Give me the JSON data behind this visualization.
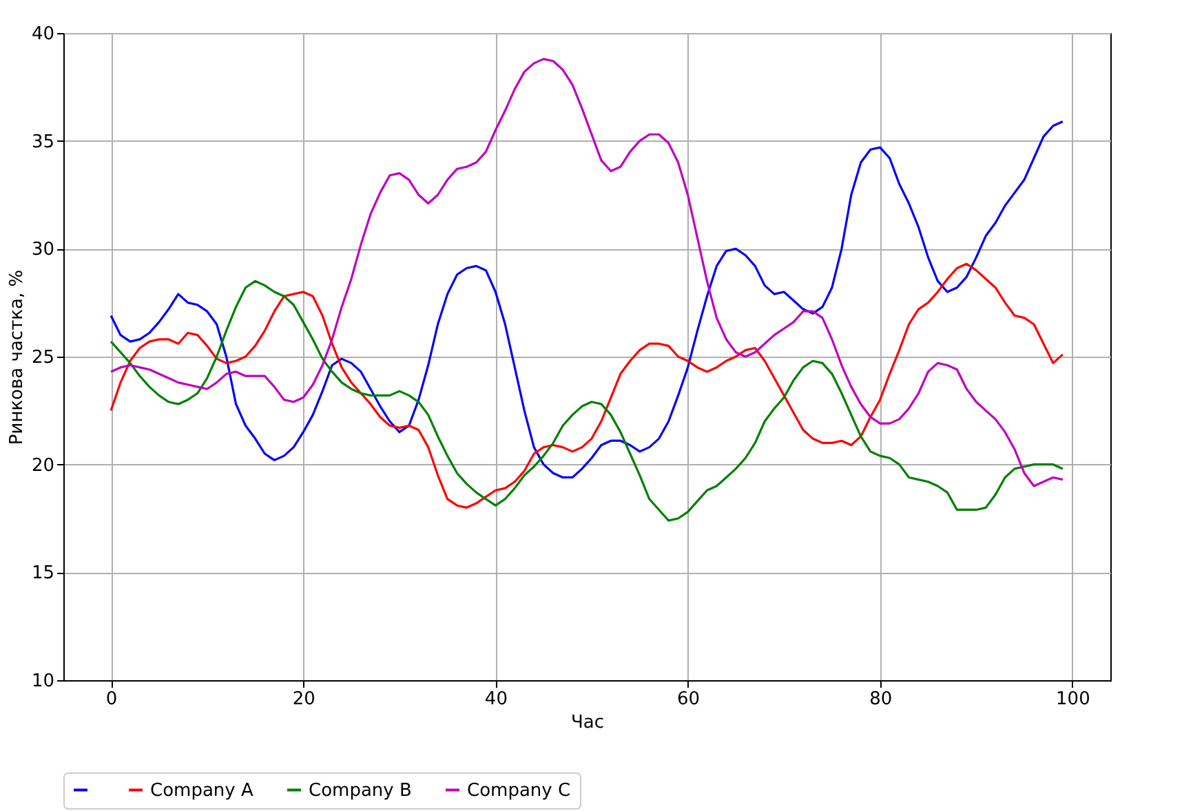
{
  "chart_data": {
    "type": "line",
    "xlabel": "Час",
    "ylabel": "Ринкова частка, %",
    "x": [
      0,
      1,
      2,
      3,
      4,
      5,
      6,
      7,
      8,
      9,
      10,
      11,
      12,
      13,
      14,
      15,
      16,
      17,
      18,
      19,
      20,
      21,
      22,
      23,
      24,
      25,
      26,
      27,
      28,
      29,
      30,
      31,
      32,
      33,
      34,
      35,
      36,
      37,
      38,
      39,
      40,
      41,
      42,
      43,
      44,
      45,
      46,
      47,
      48,
      49,
      50,
      51,
      52,
      53,
      54,
      55,
      56,
      57,
      58,
      59,
      60,
      61,
      62,
      63,
      64,
      65,
      66,
      67,
      68,
      69,
      70,
      71,
      72,
      73,
      74,
      75,
      76,
      77,
      78,
      79,
      80,
      81,
      82,
      83,
      84,
      85,
      86,
      87,
      88,
      89,
      90,
      91,
      92,
      93,
      94,
      95,
      96,
      97,
      98,
      99
    ],
    "series": [
      {
        "color": "#0000ff",
        "values": [
          26.9,
          26.0,
          25.7,
          25.8,
          26.1,
          26.6,
          27.2,
          27.9,
          27.5,
          27.4,
          27.1,
          26.5,
          25.0,
          22.8,
          21.8,
          21.2,
          20.5,
          20.2,
          20.4,
          20.8,
          21.5,
          22.3,
          23.4,
          24.6,
          24.9,
          24.7,
          24.3,
          23.5,
          22.7,
          22.0,
          21.5,
          21.8,
          23.0,
          24.6,
          26.5,
          27.9,
          28.8,
          29.1,
          29.2,
          29.0,
          28.0,
          26.5,
          24.5,
          22.5,
          20.8,
          20.0,
          19.6,
          19.4,
          19.4,
          19.8,
          20.3,
          20.9,
          21.1,
          21.1,
          20.9,
          20.6,
          20.8,
          21.2,
          22.0,
          23.2,
          24.5,
          26.2,
          27.8,
          29.2,
          29.9,
          30.0,
          29.7,
          29.2,
          28.3,
          27.9,
          28.0,
          27.6,
          27.2,
          27.0,
          27.3,
          28.2,
          30.0,
          32.5,
          34.0,
          34.6,
          34.7,
          34.2,
          33.0,
          32.1,
          31.0,
          29.6,
          28.5,
          28.0,
          28.2,
          28.7,
          29.6,
          30.6,
          31.2,
          32.0,
          32.6,
          33.2,
          34.2,
          35.2,
          35.7,
          35.9
        ]
      },
      {
        "name": "Company A",
        "color": "#ff0000",
        "values": [
          22.5,
          23.8,
          24.8,
          25.4,
          25.7,
          25.8,
          25.8,
          25.6,
          26.1,
          26.0,
          25.5,
          24.9,
          24.7,
          24.8,
          25.0,
          25.5,
          26.2,
          27.1,
          27.8,
          27.9,
          28.0,
          27.8,
          26.9,
          25.6,
          24.5,
          23.8,
          23.3,
          22.8,
          22.2,
          21.8,
          21.7,
          21.8,
          21.6,
          20.8,
          19.5,
          18.4,
          18.1,
          18.0,
          18.2,
          18.5,
          18.8,
          18.9,
          19.2,
          19.7,
          20.5,
          20.8,
          20.9,
          20.8,
          20.6,
          20.8,
          21.2,
          22.0,
          23.1,
          24.2,
          24.8,
          25.3,
          25.6,
          25.6,
          25.5,
          25.0,
          24.8,
          24.5,
          24.3,
          24.5,
          24.8,
          25.0,
          25.3,
          25.4,
          24.8,
          24.0,
          23.2,
          22.4,
          21.6,
          21.2,
          21.0,
          21.0,
          21.1,
          20.9,
          21.3,
          22.2,
          23.0,
          24.2,
          25.3,
          26.5,
          27.2,
          27.5,
          28.0,
          28.6,
          29.1,
          29.3,
          29.0,
          28.6,
          28.2,
          27.5,
          26.9,
          26.8,
          26.5,
          25.6,
          24.7,
          25.1
        ]
      },
      {
        "name": "Company B",
        "color": "#008000",
        "values": [
          25.7,
          25.2,
          24.7,
          24.1,
          23.6,
          23.2,
          22.9,
          22.8,
          23.0,
          23.3,
          24.0,
          25.0,
          26.2,
          27.3,
          28.2,
          28.5,
          28.3,
          28.0,
          27.8,
          27.4,
          26.6,
          25.8,
          24.9,
          24.3,
          23.8,
          23.5,
          23.3,
          23.2,
          23.2,
          23.2,
          23.4,
          23.2,
          22.9,
          22.3,
          21.3,
          20.4,
          19.6,
          19.1,
          18.7,
          18.4,
          18.1,
          18.4,
          18.9,
          19.5,
          19.9,
          20.4,
          21.0,
          21.8,
          22.3,
          22.7,
          22.9,
          22.8,
          22.3,
          21.5,
          20.5,
          19.5,
          18.4,
          17.9,
          17.4,
          17.5,
          17.8,
          18.3,
          18.8,
          19.0,
          19.4,
          19.8,
          20.3,
          21.0,
          22.0,
          22.6,
          23.1,
          23.9,
          24.5,
          24.8,
          24.7,
          24.2,
          23.3,
          22.3,
          21.3,
          20.6,
          20.4,
          20.3,
          20.0,
          19.4,
          19.3,
          19.2,
          19.0,
          18.7,
          17.9,
          17.9,
          17.9,
          18.0,
          18.6,
          19.4,
          19.8,
          19.9,
          20.0,
          20.0,
          20.0,
          19.8
        ]
      },
      {
        "name": "Company C",
        "color": "#bf00bf",
        "values": [
          24.3,
          24.5,
          24.6,
          24.5,
          24.4,
          24.2,
          24.0,
          23.8,
          23.7,
          23.6,
          23.5,
          23.8,
          24.2,
          24.3,
          24.1,
          24.1,
          24.1,
          23.6,
          23.0,
          22.9,
          23.1,
          23.7,
          24.6,
          25.8,
          27.3,
          28.6,
          30.2,
          31.6,
          32.6,
          33.4,
          33.5,
          33.2,
          32.5,
          32.1,
          32.5,
          33.2,
          33.7,
          33.8,
          34.0,
          34.5,
          35.5,
          36.4,
          37.4,
          38.2,
          38.6,
          38.8,
          38.7,
          38.3,
          37.6,
          36.5,
          35.3,
          34.1,
          33.6,
          33.8,
          34.5,
          35.0,
          35.3,
          35.3,
          34.9,
          34.0,
          32.5,
          30.5,
          28.5,
          26.8,
          25.8,
          25.2,
          25.0,
          25.2,
          25.6,
          26.0,
          26.3,
          26.6,
          27.1,
          27.1,
          26.8,
          25.8,
          24.6,
          23.6,
          22.8,
          22.2,
          21.9,
          21.9,
          22.1,
          22.6,
          23.3,
          24.3,
          24.7,
          24.6,
          24.4,
          23.5,
          22.9,
          22.5,
          22.1,
          21.5,
          20.7,
          19.6,
          19.0,
          19.2,
          19.4,
          19.3
        ]
      }
    ],
    "xlim": [
      -4.95,
      103.95
    ],
    "xticks": [
      0,
      20,
      40,
      60,
      80,
      100
    ],
    "ylim": [
      10,
      40
    ],
    "yticks": [
      10,
      15,
      20,
      25,
      30,
      35,
      40
    ],
    "grid": true,
    "legend": "bottom",
    "line_style": "solid",
    "marker": "none"
  }
}
